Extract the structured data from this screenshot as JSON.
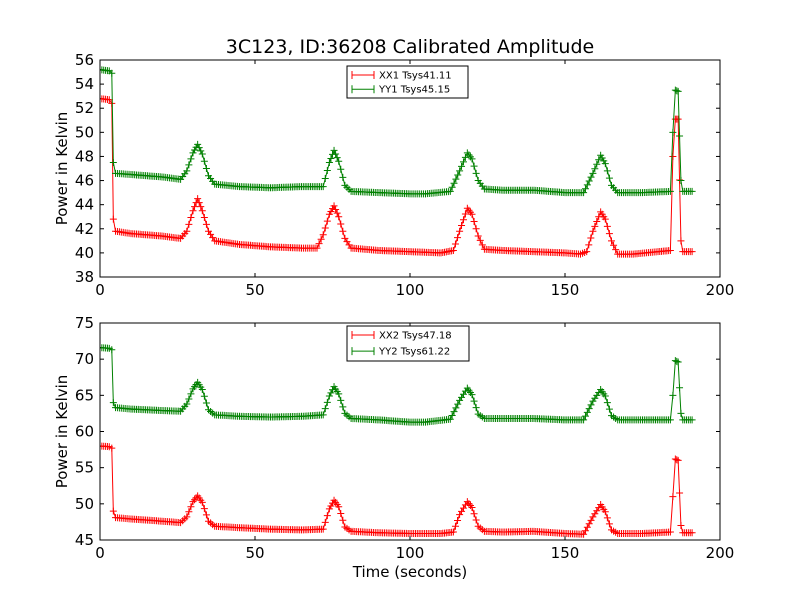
{
  "title": "3C123, ID:36208 Calibrated Amplitude",
  "colors": {
    "red": "#ff0000",
    "green": "#008000"
  },
  "chart_data": [
    {
      "type": "line",
      "ylabel": "Power in Kelvin",
      "xlabel": "",
      "xlim": [
        0,
        200
      ],
      "ylim": [
        38,
        56
      ],
      "xticks": [
        0,
        50,
        100,
        150,
        200
      ],
      "yticks": [
        38,
        40,
        42,
        44,
        46,
        48,
        50,
        52,
        54,
        56
      ],
      "legend_position": "top-center",
      "series": [
        {
          "name": "XX1 Tsys41.11",
          "color": "#ff0000",
          "marker": "+",
          "keypoints": [
            [
              0,
              52.8
            ],
            [
              3,
              52.7
            ],
            [
              3.8,
              52.4
            ],
            [
              4.3,
              42.8
            ],
            [
              5,
              41.8
            ],
            [
              10,
              41.6
            ],
            [
              20,
              41.4
            ],
            [
              26,
              41.2
            ],
            [
              28,
              41.8
            ],
            [
              30,
              43.5
            ],
            [
              31.5,
              44.5
            ],
            [
              33,
              43.5
            ],
            [
              35,
              41.8
            ],
            [
              37,
              41.0
            ],
            [
              45,
              40.7
            ],
            [
              55,
              40.5
            ],
            [
              65,
              40.4
            ],
            [
              70,
              40.4
            ],
            [
              72,
              41.5
            ],
            [
              74,
              43.2
            ],
            [
              75.5,
              43.9
            ],
            [
              77,
              43.0
            ],
            [
              79,
              41.2
            ],
            [
              81,
              40.4
            ],
            [
              90,
              40.2
            ],
            [
              100,
              40.1
            ],
            [
              110,
              40.0
            ],
            [
              114,
              40.2
            ],
            [
              116,
              41.8
            ],
            [
              118.5,
              43.7
            ],
            [
              120,
              43.2
            ],
            [
              122,
              41.4
            ],
            [
              124,
              40.3
            ],
            [
              130,
              40.2
            ],
            [
              140,
              40.1
            ],
            [
              150,
              40.0
            ],
            [
              155,
              39.9
            ],
            [
              157,
              40.1
            ],
            [
              159,
              41.8
            ],
            [
              161.5,
              43.4
            ],
            [
              163,
              42.8
            ],
            [
              165,
              41.0
            ],
            [
              167,
              39.9
            ],
            [
              172,
              39.9
            ],
            [
              180,
              40.1
            ],
            [
              184,
              40.2
            ],
            [
              184.8,
              48.0
            ],
            [
              185.6,
              51.1
            ],
            [
              186.5,
              51.1
            ],
            [
              187.4,
              41.0
            ],
            [
              188,
              40.1
            ],
            [
              191,
              40.1
            ]
          ]
        },
        {
          "name": "YY1 Tsys45.15",
          "color": "#008000",
          "marker": "+",
          "keypoints": [
            [
              0,
              55.2
            ],
            [
              3,
              55.1
            ],
            [
              3.8,
              54.9
            ],
            [
              4.3,
              47.5
            ],
            [
              5,
              46.6
            ],
            [
              10,
              46.5
            ],
            [
              20,
              46.3
            ],
            [
              26,
              46.1
            ],
            [
              28,
              46.8
            ],
            [
              30,
              48.3
            ],
            [
              31.5,
              49.0
            ],
            [
              33,
              48.2
            ],
            [
              35,
              46.4
            ],
            [
              37,
              45.7
            ],
            [
              45,
              45.5
            ],
            [
              55,
              45.4
            ],
            [
              65,
              45.5
            ],
            [
              72,
              45.5
            ],
            [
              74,
              47.5
            ],
            [
              75.5,
              48.5
            ],
            [
              77,
              47.6
            ],
            [
              79,
              45.6
            ],
            [
              81,
              45.1
            ],
            [
              90,
              45.0
            ],
            [
              100,
              44.9
            ],
            [
              105,
              44.9
            ],
            [
              113,
              45.1
            ],
            [
              116,
              46.8
            ],
            [
              118.5,
              48.3
            ],
            [
              120,
              47.8
            ],
            [
              122,
              46.0
            ],
            [
              124,
              45.3
            ],
            [
              130,
              45.2
            ],
            [
              140,
              45.2
            ],
            [
              150,
              45.0
            ],
            [
              156,
              45.0
            ],
            [
              159,
              46.6
            ],
            [
              161.5,
              48.1
            ],
            [
              163,
              47.4
            ],
            [
              165,
              45.6
            ],
            [
              167,
              45.0
            ],
            [
              175,
              45.0
            ],
            [
              184,
              45.1
            ],
            [
              184.8,
              50.0
            ],
            [
              185.6,
              53.5
            ],
            [
              186.5,
              53.4
            ],
            [
              187.4,
              46.0
            ],
            [
              188,
              45.1
            ],
            [
              191,
              45.1
            ]
          ]
        }
      ]
    },
    {
      "type": "line",
      "ylabel": "Power in Kelvin",
      "xlabel": "Time (seconds)",
      "xlim": [
        0,
        200
      ],
      "ylim": [
        45,
        75
      ],
      "xticks": [
        0,
        50,
        100,
        150,
        200
      ],
      "yticks": [
        45,
        50,
        55,
        60,
        65,
        70,
        75
      ],
      "legend_position": "top-center",
      "series": [
        {
          "name": "XX2 Tsys47.18",
          "color": "#ff0000",
          "marker": "+",
          "keypoints": [
            [
              0,
              58.0
            ],
            [
              3,
              57.9
            ],
            [
              3.8,
              57.7
            ],
            [
              4.3,
              49.0
            ],
            [
              5,
              48.1
            ],
            [
              10,
              47.9
            ],
            [
              20,
              47.6
            ],
            [
              26,
              47.4
            ],
            [
              28,
              48.2
            ],
            [
              30,
              50.3
            ],
            [
              31.5,
              51.1
            ],
            [
              33,
              50.2
            ],
            [
              35,
              47.6
            ],
            [
              37,
              46.9
            ],
            [
              45,
              46.7
            ],
            [
              55,
              46.5
            ],
            [
              65,
              46.4
            ],
            [
              72,
              46.5
            ],
            [
              74,
              49.3
            ],
            [
              75.5,
              50.5
            ],
            [
              77,
              49.6
            ],
            [
              79,
              46.8
            ],
            [
              81,
              46.2
            ],
            [
              90,
              46.0
            ],
            [
              100,
              45.9
            ],
            [
              110,
              45.9
            ],
            [
              114,
              46.1
            ],
            [
              116,
              48.5
            ],
            [
              118.5,
              50.3
            ],
            [
              120,
              49.5
            ],
            [
              122,
              46.9
            ],
            [
              124,
              46.2
            ],
            [
              130,
              46.1
            ],
            [
              140,
              46.2
            ],
            [
              150,
              45.9
            ],
            [
              156,
              45.8
            ],
            [
              159,
              48.2
            ],
            [
              161.5,
              49.9
            ],
            [
              163,
              48.9
            ],
            [
              165,
              46.4
            ],
            [
              167,
              45.9
            ],
            [
              175,
              45.9
            ],
            [
              184,
              46.1
            ],
            [
              184.8,
              51.0
            ],
            [
              185.6,
              56.2
            ],
            [
              186.5,
              56.0
            ],
            [
              187.4,
              47.0
            ],
            [
              188,
              46.0
            ],
            [
              191,
              46.0
            ]
          ]
        },
        {
          "name": "YY2 Tsys61.22",
          "color": "#008000",
          "marker": "+",
          "keypoints": [
            [
              0,
              71.6
            ],
            [
              3,
              71.5
            ],
            [
              3.8,
              71.3
            ],
            [
              4.3,
              64.0
            ],
            [
              5,
              63.3
            ],
            [
              10,
              63.1
            ],
            [
              20,
              62.9
            ],
            [
              26,
              62.8
            ],
            [
              28,
              63.8
            ],
            [
              30,
              65.9
            ],
            [
              31.5,
              66.8
            ],
            [
              33,
              65.8
            ],
            [
              35,
              63.0
            ],
            [
              37,
              62.3
            ],
            [
              45,
              62.1
            ],
            [
              55,
              62.0
            ],
            [
              65,
              62.1
            ],
            [
              72,
              62.3
            ],
            [
              74,
              64.9
            ],
            [
              75.5,
              66.2
            ],
            [
              77,
              65.2
            ],
            [
              79,
              62.5
            ],
            [
              81,
              61.8
            ],
            [
              90,
              61.6
            ],
            [
              100,
              61.3
            ],
            [
              105,
              61.3
            ],
            [
              113,
              61.7
            ],
            [
              116,
              64.3
            ],
            [
              118.5,
              66.0
            ],
            [
              120,
              65.1
            ],
            [
              122,
              62.4
            ],
            [
              124,
              61.8
            ],
            [
              130,
              61.8
            ],
            [
              140,
              61.8
            ],
            [
              150,
              61.6
            ],
            [
              156,
              61.6
            ],
            [
              159,
              64.2
            ],
            [
              161.5,
              65.8
            ],
            [
              163,
              64.9
            ],
            [
              165,
              62.2
            ],
            [
              167,
              61.6
            ],
            [
              175,
              61.6
            ],
            [
              184,
              61.6
            ],
            [
              184.8,
              65.0
            ],
            [
              185.6,
              69.8
            ],
            [
              186.5,
              69.6
            ],
            [
              187.4,
              62.5
            ],
            [
              188,
              61.6
            ],
            [
              191,
              61.6
            ]
          ]
        }
      ]
    }
  ]
}
